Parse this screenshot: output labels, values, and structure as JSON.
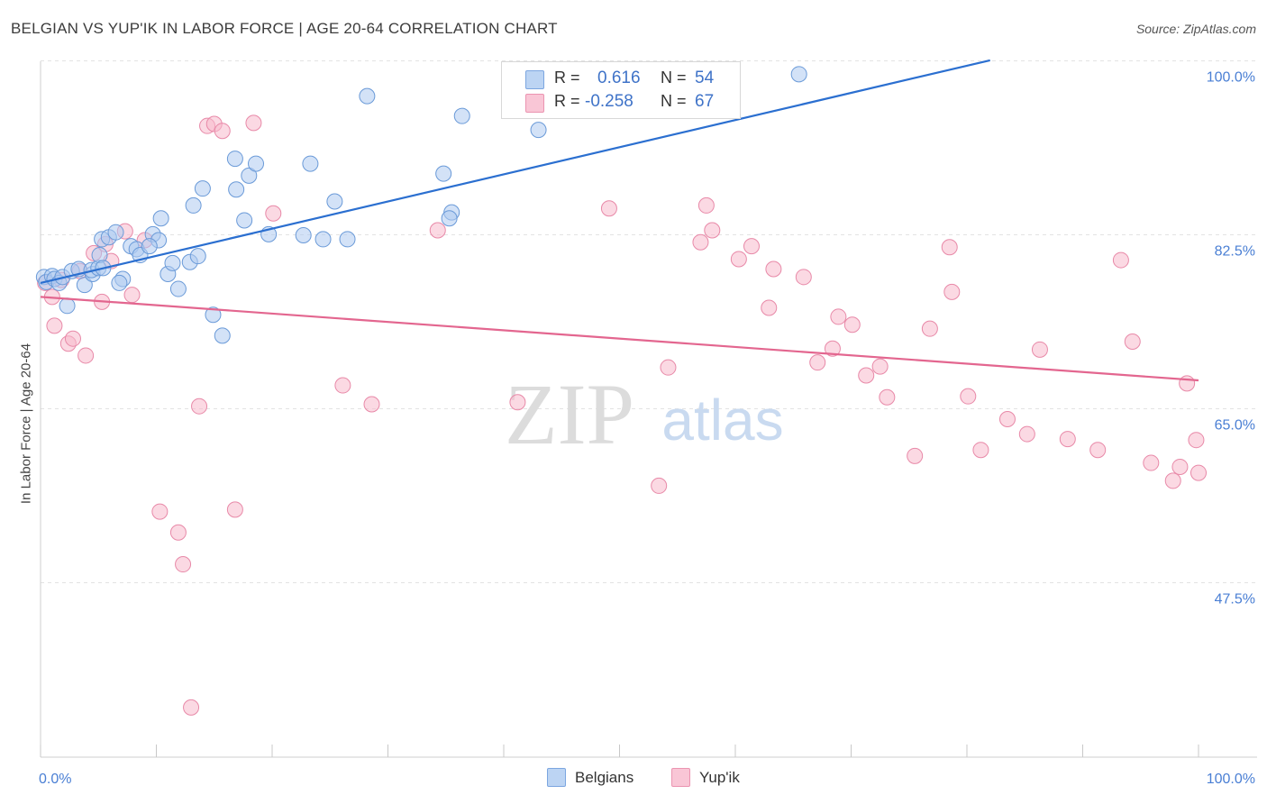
{
  "title": "BELGIAN VS YUP'IK IN LABOR FORCE | AGE 20-64 CORRELATION CHART",
  "source": "Source: ZipAtlas.com",
  "watermark": {
    "zip": "ZIP",
    "atlas": "atlas"
  },
  "legend": {
    "rows": [
      {
        "r_label": "R =",
        "r_value": "0.616",
        "n_label": "N =",
        "n_value": "54"
      },
      {
        "r_label": "R =",
        "r_value": "-0.258",
        "n_label": "N =",
        "n_value": "67"
      }
    ],
    "bottom": [
      "Belgians",
      "Yup'ik"
    ]
  },
  "colors": {
    "blue_fill": "#aecbf0",
    "blue_stroke": "#6a9ad8",
    "blue_line": "#2b6fd0",
    "pink_fill": "#f7b9cc",
    "pink_stroke": "#e889a8",
    "pink_line": "#e3668f",
    "tick_text": "#4a7fd4",
    "grid": "#e3e3e3"
  },
  "chart_data": {
    "type": "scatter",
    "title": "BELGIAN VS YUP'IK IN LABOR FORCE | AGE 20-64 CORRELATION CHART",
    "xlabel": "",
    "ylabel": "In Labor Force | Age 20-64",
    "xlim": [
      0,
      100
    ],
    "ylim": [
      31.5,
      101.5
    ],
    "x_tick_labels": [
      "0.0%",
      "100.0%"
    ],
    "y_ticks": [
      100.0,
      82.5,
      65.0,
      47.5
    ],
    "y_tick_labels": [
      "100.0%",
      "82.5%",
      "65.0%",
      "47.5%"
    ],
    "series": [
      {
        "name": "Belgians",
        "r": 0.616,
        "n": 54,
        "trend": {
          "x": [
            0,
            82
          ],
          "y": [
            79.2,
            101.6
          ]
        },
        "points": [
          [
            0.3,
            79.8
          ],
          [
            0.5,
            79.3
          ],
          [
            1.0,
            79.9
          ],
          [
            1.2,
            79.6
          ],
          [
            1.6,
            79.2
          ],
          [
            1.9,
            79.8
          ],
          [
            2.3,
            76.9
          ],
          [
            2.7,
            80.4
          ],
          [
            3.3,
            80.6
          ],
          [
            3.8,
            79.0
          ],
          [
            4.5,
            80.1
          ],
          [
            4.4,
            80.5
          ],
          [
            5.0,
            80.7
          ],
          [
            5.1,
            82.0
          ],
          [
            5.3,
            83.6
          ],
          [
            5.9,
            83.8
          ],
          [
            6.5,
            84.3
          ],
          [
            7.1,
            79.6
          ],
          [
            7.8,
            82.9
          ],
          [
            8.3,
            82.6
          ],
          [
            8.6,
            82.0
          ],
          [
            9.7,
            84.1
          ],
          [
            10.2,
            83.5
          ],
          [
            10.4,
            85.7
          ],
          [
            11.0,
            80.1
          ],
          [
            11.4,
            81.2
          ],
          [
            11.9,
            78.6
          ],
          [
            12.9,
            81.3
          ],
          [
            13.2,
            87.0
          ],
          [
            14.0,
            88.7
          ],
          [
            14.9,
            76.0
          ],
          [
            15.7,
            73.9
          ],
          [
            16.8,
            91.7
          ],
          [
            16.9,
            88.6
          ],
          [
            17.6,
            85.5
          ],
          [
            18.0,
            90.0
          ],
          [
            18.6,
            91.2
          ],
          [
            19.7,
            84.1
          ],
          [
            22.7,
            84.0
          ],
          [
            23.3,
            91.2
          ],
          [
            24.4,
            83.6
          ],
          [
            25.4,
            87.4
          ],
          [
            26.5,
            83.6
          ],
          [
            28.2,
            98.0
          ],
          [
            34.8,
            90.2
          ],
          [
            35.5,
            86.3
          ],
          [
            35.3,
            85.7
          ],
          [
            36.4,
            96.0
          ],
          [
            43.0,
            94.6
          ],
          [
            65.5,
            100.2
          ],
          [
            5.4,
            80.7
          ],
          [
            6.8,
            79.2
          ],
          [
            9.4,
            82.9
          ],
          [
            13.6,
            81.9
          ]
        ]
      },
      {
        "name": "Yup'ik",
        "r": -0.258,
        "n": 67,
        "trend": {
          "x": [
            0,
            100
          ],
          "y": [
            77.8,
            69.4
          ]
        },
        "points": [
          [
            0.4,
            79.2
          ],
          [
            1.0,
            77.8
          ],
          [
            1.2,
            74.9
          ],
          [
            1.8,
            79.5
          ],
          [
            2.4,
            73.1
          ],
          [
            2.8,
            73.6
          ],
          [
            3.4,
            80.4
          ],
          [
            3.9,
            71.9
          ],
          [
            4.6,
            82.2
          ],
          [
            5.3,
            77.3
          ],
          [
            5.6,
            83.1
          ],
          [
            6.1,
            81.4
          ],
          [
            7.3,
            84.4
          ],
          [
            7.9,
            78.0
          ],
          [
            9.0,
            83.5
          ],
          [
            10.3,
            56.2
          ],
          [
            11.9,
            54.1
          ],
          [
            12.3,
            50.9
          ],
          [
            13.0,
            36.5
          ],
          [
            13.7,
            66.8
          ],
          [
            14.4,
            95.0
          ],
          [
            15.0,
            95.2
          ],
          [
            15.7,
            94.5
          ],
          [
            16.8,
            56.4
          ],
          [
            18.4,
            95.3
          ],
          [
            20.1,
            86.2
          ],
          [
            26.1,
            68.9
          ],
          [
            28.6,
            67.0
          ],
          [
            34.3,
            84.5
          ],
          [
            41.2,
            67.2
          ],
          [
            49.1,
            86.7
          ],
          [
            53.4,
            58.8
          ],
          [
            54.2,
            70.7
          ],
          [
            57.5,
            87.0
          ],
          [
            57.0,
            83.3
          ],
          [
            58.0,
            84.5
          ],
          [
            60.3,
            81.6
          ],
          [
            61.4,
            82.9
          ],
          [
            62.9,
            76.7
          ],
          [
            63.3,
            80.6
          ],
          [
            65.9,
            79.8
          ],
          [
            67.1,
            71.2
          ],
          [
            68.4,
            72.6
          ],
          [
            68.9,
            75.8
          ],
          [
            70.1,
            75.0
          ],
          [
            71.3,
            69.9
          ],
          [
            72.5,
            70.8
          ],
          [
            73.1,
            67.7
          ],
          [
            75.5,
            61.8
          ],
          [
            76.8,
            74.6
          ],
          [
            78.5,
            82.8
          ],
          [
            78.7,
            78.3
          ],
          [
            80.1,
            67.8
          ],
          [
            81.2,
            62.4
          ],
          [
            85.2,
            64.0
          ],
          [
            86.3,
            72.5
          ],
          [
            88.7,
            63.5
          ],
          [
            91.3,
            62.4
          ],
          [
            93.3,
            81.5
          ],
          [
            94.3,
            73.3
          ],
          [
            95.9,
            61.1
          ],
          [
            97.8,
            59.3
          ],
          [
            98.4,
            60.7
          ],
          [
            99.0,
            69.1
          ],
          [
            99.8,
            63.4
          ],
          [
            100.0,
            60.1
          ],
          [
            83.5,
            65.5
          ]
        ]
      }
    ]
  }
}
